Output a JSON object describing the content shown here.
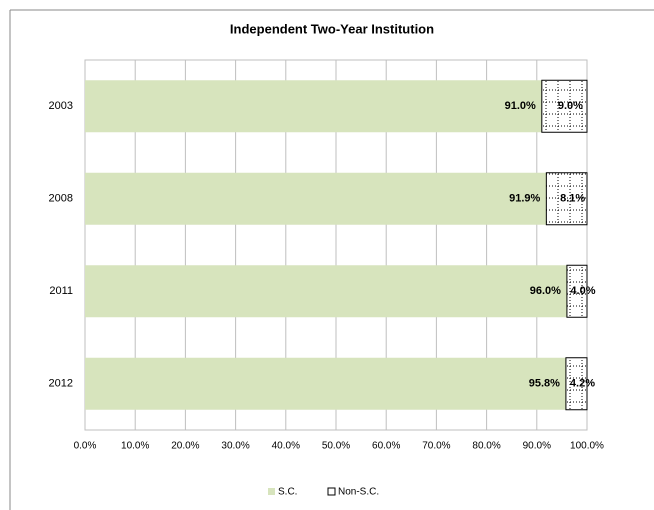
{
  "chart_data": {
    "type": "stacked_barh",
    "title": "Independent Two-Year Institution",
    "categories": [
      "2003",
      "2008",
      "2011",
      "2012"
    ],
    "series": [
      {
        "name": "S.C.",
        "color": "#d7e4bd",
        "values": [
          91.0,
          91.9,
          96.0,
          95.8
        ],
        "value_labels": [
          "91.0%",
          "91.9%",
          "96.0%",
          "95.8%"
        ]
      },
      {
        "name": "Non-S.C.",
        "color": "#ffffff",
        "values": [
          9.0,
          8.1,
          4.0,
          4.2
        ],
        "value_labels": [
          "9.0%",
          "8.1%",
          "4.0%",
          "4.2%"
        ]
      }
    ],
    "xlim": [
      0,
      100
    ],
    "xticks": [
      {
        "value": 0,
        "label": "0.0%"
      },
      {
        "value": 10,
        "label": "10.0%"
      },
      {
        "value": 20,
        "label": "20.0%"
      },
      {
        "value": 30,
        "label": "30.0%"
      },
      {
        "value": 40,
        "label": "40.0%"
      },
      {
        "value": 50,
        "label": "50.0%"
      },
      {
        "value": 60,
        "label": "60.0%"
      },
      {
        "value": 70,
        "label": "70.0%"
      },
      {
        "value": 80,
        "label": "80.0%"
      },
      {
        "value": 90,
        "label": "90.0%"
      },
      {
        "value": 100,
        "label": "100.0%"
      }
    ],
    "grid": true,
    "legend": "bottom"
  }
}
